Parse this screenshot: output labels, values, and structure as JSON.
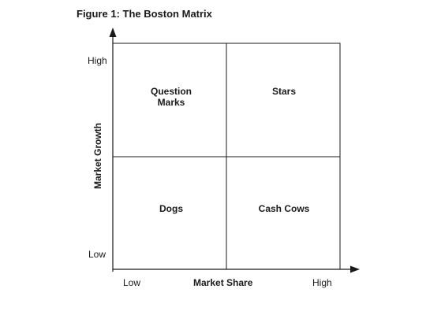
{
  "figure": {
    "title": "Figure 1: The Boston Matrix"
  },
  "axes": {
    "y_title": "Market Growth",
    "y_high": "High",
    "y_low": "Low",
    "x_title": "Market Share",
    "x_low": "Low",
    "x_high": "High"
  },
  "quadrants": {
    "top_left": "Question Marks",
    "top_right": "Stars",
    "bottom_left": "Dogs",
    "bottom_right": "Cash Cows"
  },
  "colors": {
    "line": "#1a1a1a",
    "text": "#1a1a1a",
    "background": "#ffffff"
  }
}
